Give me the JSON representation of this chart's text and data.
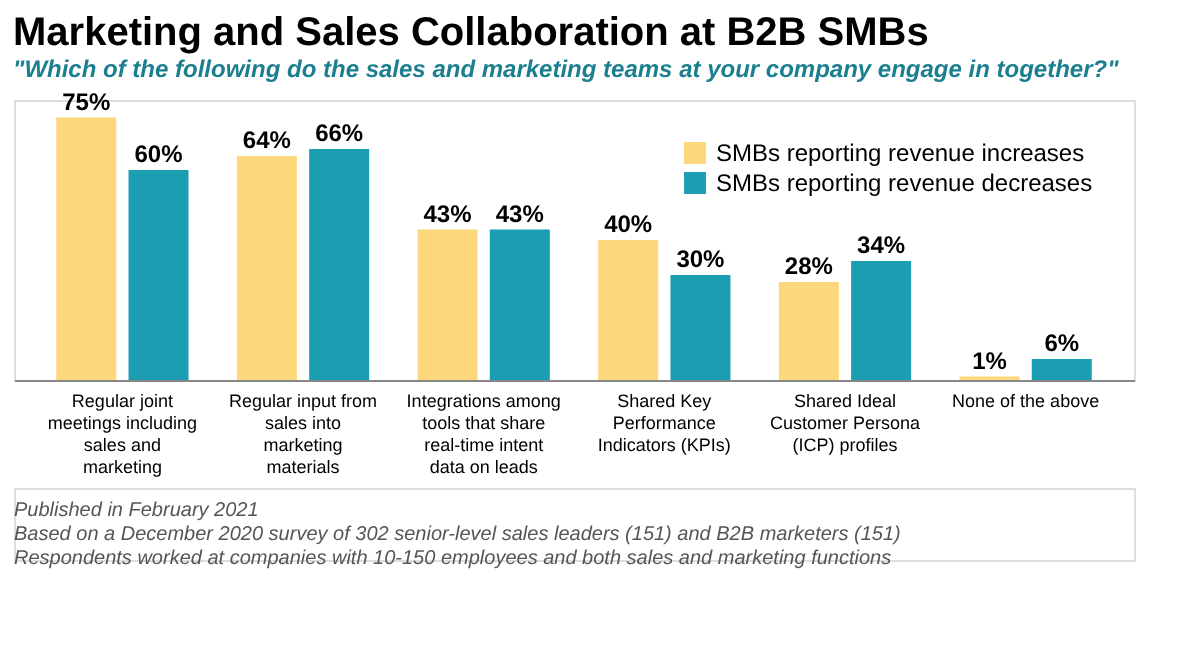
{
  "chart_data": {
    "type": "bar",
    "title": "Marketing and Sales Collaboration at B2B SMBs",
    "subtitle": "\"Which of the following do the sales and marketing teams at your company engage in together?\"",
    "categories": [
      "Regular joint meetings including sales and marketing",
      "Regular input from sales into marketing materials",
      "Integrations among tools that share real-time intent data on leads",
      "Shared Key Performance Indicators (KPIs)",
      "Shared Ideal Customer Persona (ICP) profiles",
      "None of the above"
    ],
    "series": [
      {
        "name": "SMBs reporting revenue increases",
        "color": "#fdd77b",
        "values": [
          75,
          64,
          43,
          40,
          28,
          1
        ],
        "value_labels": [
          "75%",
          "64%",
          "43%",
          "40%",
          "28%",
          "1%"
        ]
      },
      {
        "name": "SMBs reporting revenue decreases",
        "color": "#1b9db2",
        "values": [
          60,
          66,
          43,
          30,
          34,
          6
        ],
        "value_labels": [
          "60%",
          "66%",
          "43%",
          "30%",
          "34%",
          "6%"
        ]
      }
    ],
    "legend": "top right",
    "annotations": [
      "Published in February 2021",
      "Based on a December 2020 survey of 302 senior-level sales leaders (151) and B2B marketers (151)",
      "Respondents worked at companies with 10-150 employees and both sales and marketing functions"
    ]
  }
}
